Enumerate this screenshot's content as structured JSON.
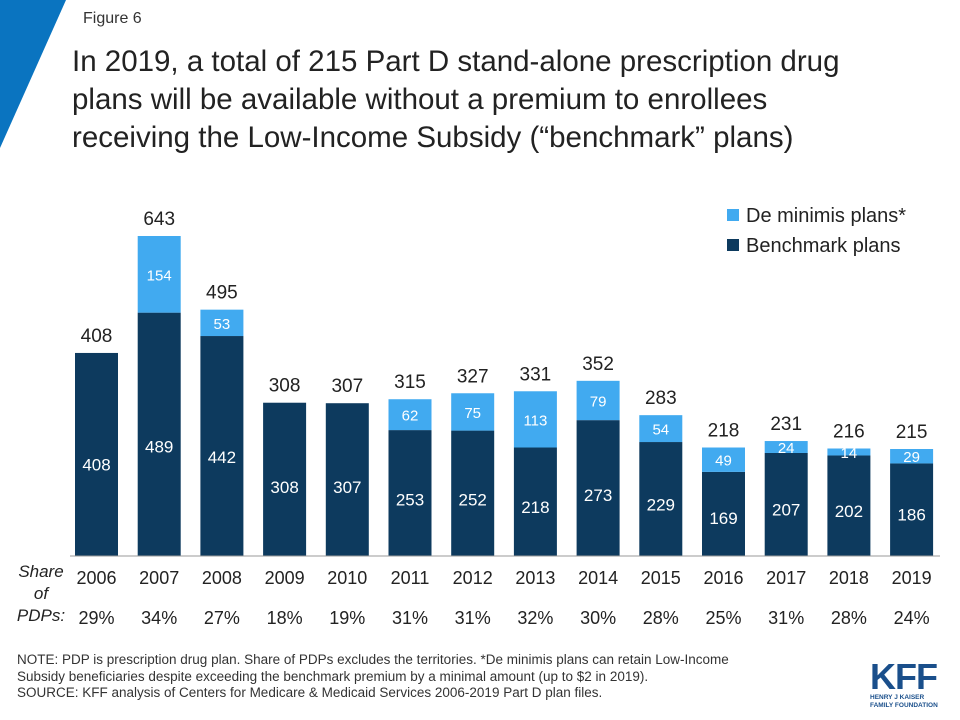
{
  "figure_label": "Figure 6",
  "title_lines": [
    "In 2019, a total of 215 Part D stand-alone prescription drug",
    "plans will be available without a premium to enrollees",
    "receiving the Low-Income Subsidy (“benchmark” plans)"
  ],
  "share_label_lines": [
    "Share",
    "of",
    "PDPs:"
  ],
  "note_lines": [
    "NOTE: PDP is prescription drug plan. Share of PDPs excludes the territories. *De minimis plans can retain Low-Income",
    "Subsidy beneficiaries despite exceeding the benchmark premium by a minimal amount (up to $2 in 2019).",
    "SOURCE: KFF analysis of Centers for Medicare & Medicaid Services 2006-2019 Part D plan files."
  ],
  "logo": {
    "mark": "KFF",
    "sub_lines": [
      "HENRY J KAISER",
      "FAMILY FOUNDATION"
    ]
  },
  "colors": {
    "benchmark": "#0d3a5e",
    "de_minimis": "#41aaf0",
    "corner": "#0a74c0"
  },
  "chart_data": {
    "type": "bar",
    "stacked": true,
    "categories": [
      "2006",
      "2007",
      "2008",
      "2009",
      "2010",
      "2011",
      "2012",
      "2013",
      "2014",
      "2015",
      "2016",
      "2017",
      "2018",
      "2019"
    ],
    "series": [
      {
        "name": "Benchmark plans",
        "values": [
          408,
          489,
          442,
          308,
          307,
          253,
          252,
          218,
          273,
          229,
          169,
          207,
          202,
          186
        ]
      },
      {
        "name": "De minimis plans*",
        "values": [
          0,
          154,
          53,
          0,
          0,
          62,
          75,
          113,
          79,
          54,
          49,
          24,
          14,
          29
        ]
      }
    ],
    "totals": [
      408,
      643,
      495,
      308,
      307,
      315,
      327,
      331,
      352,
      283,
      218,
      231,
      216,
      215
    ],
    "share_of_pdps": [
      "29%",
      "34%",
      "27%",
      "18%",
      "19%",
      "31%",
      "31%",
      "32%",
      "30%",
      "28%",
      "25%",
      "31%",
      "28%",
      "24%"
    ],
    "legend": [
      "De minimis plans*",
      "Benchmark plans"
    ],
    "legend_position": "top-right",
    "ylim": [
      0,
      700
    ],
    "grid": false
  }
}
